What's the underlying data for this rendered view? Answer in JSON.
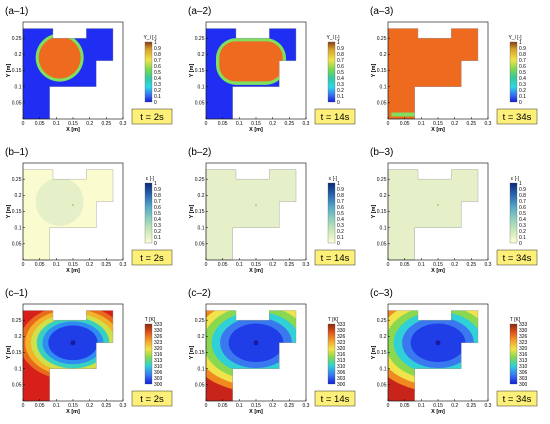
{
  "figure": {
    "rows": [
      {
        "variable": "Y",
        "colorbar_title": "Y_l [-]",
        "colorbar_ticks": [
          "1",
          "0.9",
          "0.8",
          "0.7",
          "0.6",
          "0.5",
          "0.4",
          "0.3",
          "0.2",
          "0.1",
          "0"
        ],
        "colors": {
          "background": "#1f2ef2",
          "front": "#7fe060",
          "fill": "#ee6a1f"
        },
        "panels": [
          {
            "label": "(a–1)",
            "time": "t = 2s"
          },
          {
            "label": "(a–2)",
            "time": "t = 14s"
          },
          {
            "label": "(a–3)",
            "time": "t = 34s"
          }
        ]
      },
      {
        "variable": "epsilon",
        "colorbar_title": "ε [-]",
        "colorbar_ticks": [
          "1",
          "0.9",
          "0.8",
          "0.7",
          "0.6",
          "0.5",
          "0.4",
          "0.3",
          "0.2",
          "0.1",
          "0"
        ],
        "colors": {
          "background": "#fbfbd0",
          "fill": "#e5f0c8"
        },
        "panels": [
          {
            "label": "(b–1)",
            "time": "t = 2s"
          },
          {
            "label": "(b–2)",
            "time": "t = 14s"
          },
          {
            "label": "(b–3)",
            "time": "t = 34s"
          }
        ]
      },
      {
        "variable": "T",
        "colorbar_title": "T [K]",
        "colorbar_ticks": [
          "333",
          "330",
          "326",
          "323",
          "320",
          "316",
          "313",
          "310",
          "306",
          "303",
          "300"
        ],
        "colors": {
          "hot": "#d8201a",
          "cold": "#1f3ee8"
        },
        "panels": [
          {
            "label": "(c–1)",
            "time": "t = 2s"
          },
          {
            "label": "(c–2)",
            "time": "t = 14s"
          },
          {
            "label": "(c–3)",
            "time": "t = 34s"
          }
        ]
      }
    ],
    "axes": {
      "xlabel": "X [m]",
      "ylabel": "Y [m]",
      "xticks": [
        "0",
        "0.05",
        "0.1",
        "0.15",
        "0.2",
        "0.25",
        "0.3"
      ],
      "yticks": [
        "0.05",
        "0.1",
        "0.15",
        "0.2",
        "0.25"
      ]
    }
  }
}
